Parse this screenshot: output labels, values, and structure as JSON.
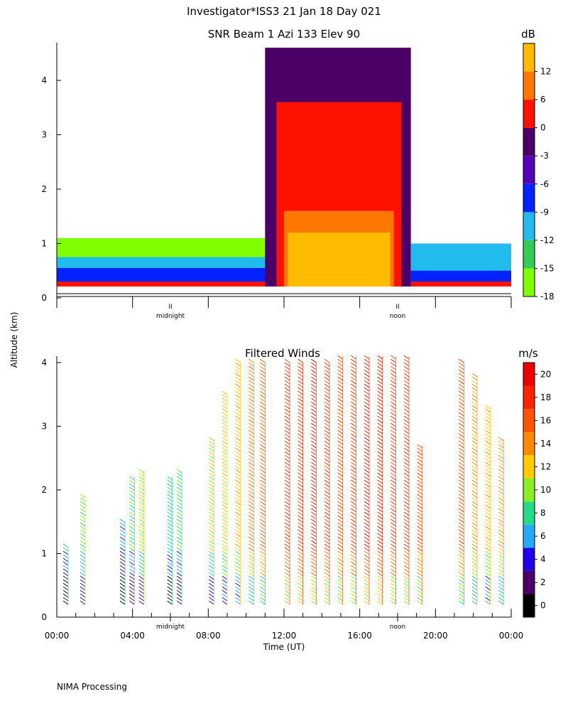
{
  "header": {
    "title": "Investigator*ISS3  21 Jan 18 Day 021",
    "footer": "NIMA Processing",
    "shared_ylabel": "Altitude (km)"
  },
  "chart_data": [
    {
      "type": "heatmap",
      "title": "SNR Beam 1 Azi 133 Elev 90",
      "ylabel": "Altitude (km)",
      "xlim_hours": [
        0,
        24
      ],
      "ylim": [
        0,
        4.6
      ],
      "yticks": [
        "0",
        "1",
        "2",
        "3",
        "4"
      ],
      "time_markers": [
        {
          "hour": 6,
          "label": "midnight"
        },
        {
          "hour": 18,
          "label": "noon"
        }
      ],
      "colorbar": {
        "unit": "dB",
        "tick_labels": [
          "-18",
          "-15",
          "-12",
          "-9",
          "-6",
          "-3",
          "0",
          "6",
          "12"
        ],
        "colors": [
          "#7fff00",
          "#33cc55",
          "#22bbee",
          "#0022ff",
          "#5500bb",
          "#4a0066",
          "#ff1100",
          "#ff7700",
          "#ffbb00"
        ]
      },
      "regions": [
        {
          "t0": 0,
          "t1": 11.9,
          "top_km": 1.1,
          "level": "-18"
        },
        {
          "t0": 0,
          "t1": 11.9,
          "top_km": 0.75,
          "level": "-12"
        },
        {
          "t0": 0,
          "t1": 11.9,
          "top_km": 0.55,
          "level": "-9"
        },
        {
          "t0": 0,
          "t1": 11.9,
          "top_km": 0.3,
          "level": "0"
        },
        {
          "t0": 11.0,
          "t1": 18.7,
          "top_km": 4.6,
          "level": "-3"
        },
        {
          "t0": 11.6,
          "t1": 18.2,
          "top_km": 3.6,
          "level": "0"
        },
        {
          "t0": 12.0,
          "t1": 17.8,
          "top_km": 1.6,
          "level": "6"
        },
        {
          "t0": 12.2,
          "t1": 17.6,
          "top_km": 1.2,
          "level": "12"
        },
        {
          "t0": 18.7,
          "t1": 24,
          "top_km": 1.0,
          "level": "-12"
        },
        {
          "t0": 18.7,
          "t1": 24,
          "top_km": 0.5,
          "level": "-9"
        },
        {
          "t0": 18.7,
          "t1": 24,
          "top_km": 0.3,
          "level": "0"
        }
      ]
    },
    {
      "type": "scatter",
      "title": "Filtered Winds",
      "xlabel": "Time (UT)",
      "ylabel": "Altitude (km)",
      "xlim_hours": [
        0,
        24
      ],
      "ylim": [
        0,
        4.1
      ],
      "xticks": [
        "00:00",
        "04:00",
        "08:00",
        "12:00",
        "16:00",
        "20:00",
        "00:00"
      ],
      "yticks": [
        "0",
        "1",
        "2",
        "3",
        "4"
      ],
      "time_markers": [
        {
          "hour": 6,
          "label": "midnight"
        },
        {
          "hour": 18,
          "label": "noon"
        }
      ],
      "colorbar": {
        "unit": "m/s",
        "tick_labels": [
          "0",
          "2",
          "4",
          "6",
          "8",
          "10",
          "12",
          "14",
          "16",
          "18",
          "20"
        ],
        "colors": [
          "#000000",
          "#4a0066",
          "#2200ee",
          "#22aaff",
          "#22dd88",
          "#88ee22",
          "#ffcc00",
          "#ff8800",
          "#ff5500",
          "#ff2200",
          "#ee0000"
        ]
      },
      "profiles": [
        {
          "hour": 0.6,
          "top_km": 1.1,
          "speed": 8
        },
        {
          "hour": 1.5,
          "top_km": 1.9,
          "speed": 10
        },
        {
          "hour": 3.6,
          "top_km": 1.5,
          "speed": 6
        },
        {
          "hour": 4.1,
          "top_km": 2.2,
          "speed": 9
        },
        {
          "hour": 4.6,
          "top_km": 2.3,
          "speed": 11
        },
        {
          "hour": 6.1,
          "top_km": 2.2,
          "speed": 8
        },
        {
          "hour": 6.6,
          "top_km": 2.3,
          "speed": 9
        },
        {
          "hour": 8.3,
          "top_km": 2.8,
          "speed": 11
        },
        {
          "hour": 9.0,
          "top_km": 3.5,
          "speed": 12
        },
        {
          "hour": 9.7,
          "top_km": 4.0,
          "speed": 13
        },
        {
          "hour": 10.4,
          "top_km": 4.0,
          "speed": 15
        },
        {
          "hour": 11.0,
          "top_km": 4.0,
          "speed": 16
        },
        {
          "hour": 12.3,
          "top_km": 4.0,
          "speed": 18
        },
        {
          "hour": 13.0,
          "top_km": 4.0,
          "speed": 18
        },
        {
          "hour": 13.7,
          "top_km": 4.0,
          "speed": 19
        },
        {
          "hour": 14.4,
          "top_km": 4.0,
          "speed": 18
        },
        {
          "hour": 15.1,
          "top_km": 4.1,
          "speed": 17
        },
        {
          "hour": 15.8,
          "top_km": 4.1,
          "speed": 18
        },
        {
          "hour": 16.5,
          "top_km": 4.1,
          "speed": 19
        },
        {
          "hour": 17.2,
          "top_km": 4.1,
          "speed": 19
        },
        {
          "hour": 17.9,
          "top_km": 4.1,
          "speed": 18
        },
        {
          "hour": 18.6,
          "top_km": 4.1,
          "speed": 18
        },
        {
          "hour": 19.3,
          "top_km": 2.7,
          "speed": 17
        },
        {
          "hour": 21.5,
          "top_km": 4.0,
          "speed": 17
        },
        {
          "hour": 22.2,
          "top_km": 3.8,
          "speed": 14
        },
        {
          "hour": 22.9,
          "top_km": 3.3,
          "speed": 13
        },
        {
          "hour": 23.6,
          "top_km": 2.8,
          "speed": 14
        }
      ]
    }
  ]
}
